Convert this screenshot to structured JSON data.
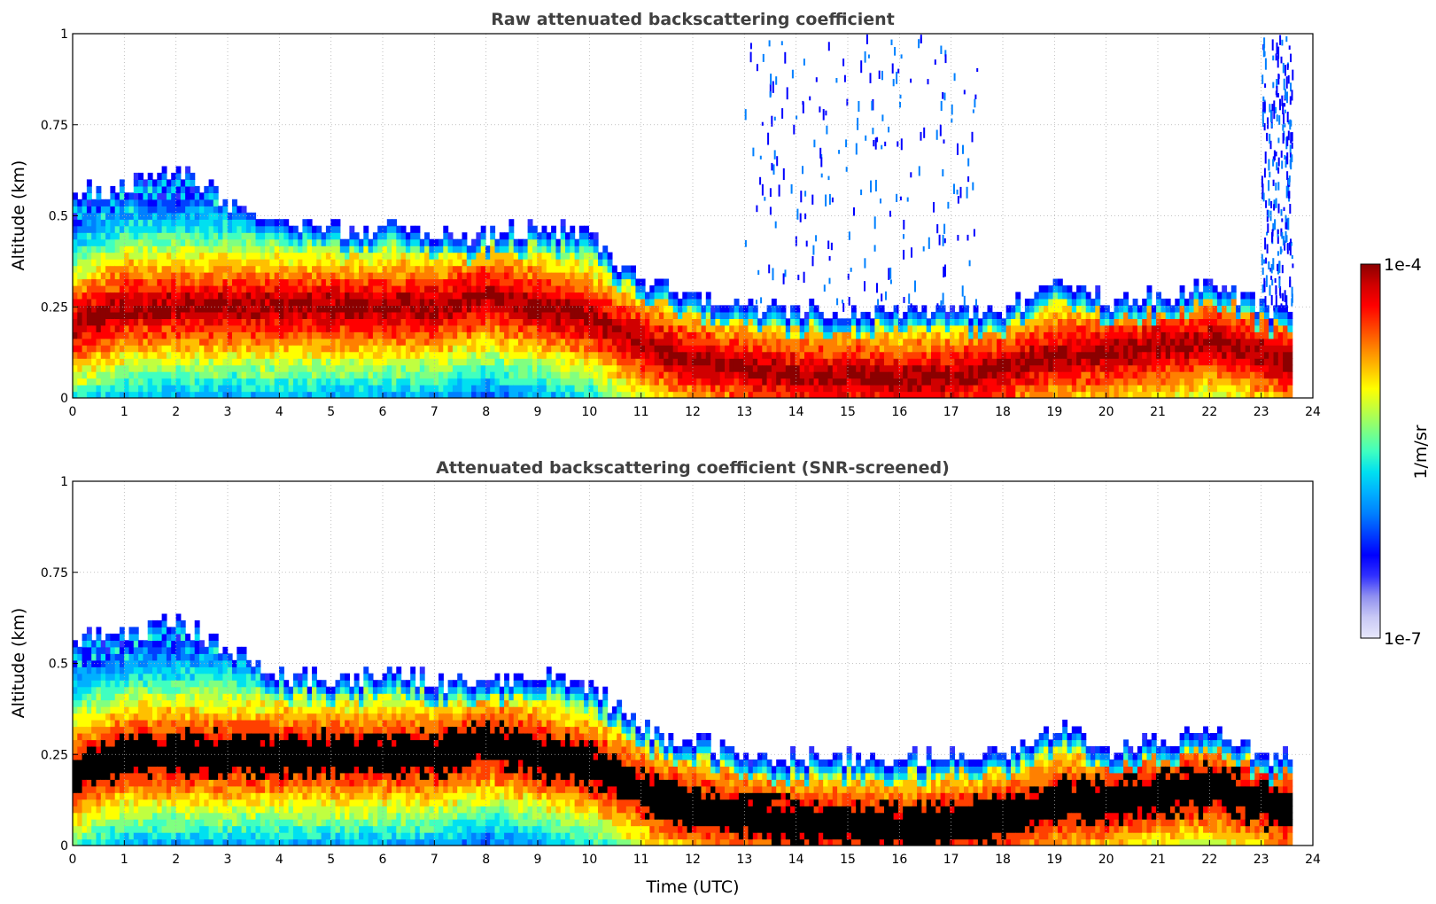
{
  "chart_data": [
    {
      "type": "heatmap",
      "title": "Raw attenuated backscattering coefficient",
      "xlabel": "",
      "ylabel": "Altitude (km)",
      "xlim": [
        0,
        24
      ],
      "ylim": [
        0,
        1
      ],
      "xticks": [
        "0",
        "1",
        "2",
        "3",
        "4",
        "5",
        "6",
        "7",
        "8",
        "9",
        "10",
        "11",
        "12",
        "13",
        "14",
        "15",
        "16",
        "17",
        "18",
        "19",
        "20",
        "21",
        "22",
        "23",
        "24"
      ],
      "yticks": [
        "0",
        "0.25",
        "0.5",
        "0.75",
        "1"
      ],
      "grid": true,
      "data_end_time": 23.6,
      "layer_top_km": [
        0.55,
        0.56,
        0.6,
        0.52,
        0.45,
        0.44,
        0.45,
        0.43,
        0.43,
        0.45,
        0.42,
        0.3,
        0.27,
        0.22,
        0.22,
        0.22,
        0.22,
        0.22,
        0.22,
        0.3,
        0.25,
        0.26,
        0.3,
        0.23,
        0.2
      ],
      "aerosol_peak_km": [
        0.2,
        0.25,
        0.25,
        0.25,
        0.25,
        0.25,
        0.25,
        0.25,
        0.28,
        0.25,
        0.22,
        0.15,
        0.1,
        0.08,
        0.06,
        0.06,
        0.05,
        0.06,
        0.08,
        0.12,
        0.12,
        0.14,
        0.16,
        0.12,
        0.08
      ],
      "high_signal_periods": [
        [
          13.0,
          17.5
        ],
        [
          23.0,
          23.6
        ]
      ]
    },
    {
      "type": "heatmap",
      "title": "Attenuated backscattering coefficient (SNR-screened)",
      "xlabel": "Time (UTC)",
      "ylabel": "Altitude (km)",
      "xlim": [
        0,
        24
      ],
      "ylim": [
        0,
        1
      ],
      "xticks": [
        "0",
        "1",
        "2",
        "3",
        "4",
        "5",
        "6",
        "7",
        "8",
        "9",
        "10",
        "11",
        "12",
        "13",
        "14",
        "15",
        "16",
        "17",
        "18",
        "19",
        "20",
        "21",
        "22",
        "23",
        "24"
      ],
      "yticks": [
        "0",
        "0.25",
        "0.5",
        "0.75",
        "1"
      ],
      "grid": true,
      "data_end_time": 23.6,
      "saturated_color": "#000000",
      "layer_top_km": [
        0.55,
        0.56,
        0.6,
        0.52,
        0.45,
        0.44,
        0.45,
        0.43,
        0.43,
        0.45,
        0.42,
        0.3,
        0.27,
        0.22,
        0.22,
        0.22,
        0.22,
        0.22,
        0.22,
        0.3,
        0.25,
        0.26,
        0.3,
        0.23,
        0.2
      ],
      "aerosol_peak_km": [
        0.2,
        0.25,
        0.25,
        0.25,
        0.25,
        0.25,
        0.25,
        0.25,
        0.28,
        0.25,
        0.22,
        0.15,
        0.1,
        0.08,
        0.06,
        0.06,
        0.05,
        0.06,
        0.08,
        0.12,
        0.12,
        0.14,
        0.16,
        0.12,
        0.08
      ]
    }
  ],
  "colorbar": {
    "label": "1/m/sr",
    "max_label": "1e-4",
    "min_label": "1e-7",
    "scale": "log",
    "range": [
      1e-07,
      0.0001
    ],
    "colors": [
      "#e8e8fb",
      "#c8c8f5",
      "#9090f0",
      "#3030ff",
      "#0000ff",
      "#0040ff",
      "#0080ff",
      "#00b0ff",
      "#00e0f0",
      "#40ffc0",
      "#80ff80",
      "#c0ff40",
      "#ffff00",
      "#ffc000",
      "#ff8000",
      "#ff4000",
      "#ff0000",
      "#d00000",
      "#8b0000"
    ]
  }
}
